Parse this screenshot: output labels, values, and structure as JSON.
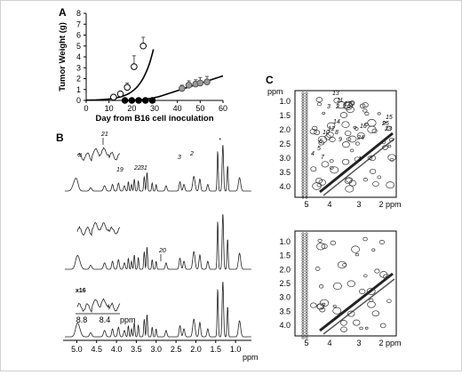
{
  "panels": {
    "a": {
      "label": "A"
    },
    "b": {
      "label": "B"
    },
    "c": {
      "label": "C"
    }
  },
  "chart_data": {
    "type": "scatter",
    "xlabel": "Day from B16 cell inoculation",
    "ylabel": "Tumor Weight (g)",
    "xlim": [
      0,
      60
    ],
    "ylim": [
      0,
      8
    ],
    "x_ticks": [
      "0",
      "10",
      "20",
      "30",
      "40",
      "50",
      "60"
    ],
    "y_ticks": [
      "0",
      "1",
      "2",
      "3",
      "4",
      "5",
      "6",
      "7",
      "8"
    ],
    "series": [
      {
        "style": "open circles with growth curve",
        "x": [
          12,
          15,
          18,
          21,
          25
        ],
        "y": [
          0.3,
          0.6,
          1.2,
          3.1,
          5.0
        ],
        "err": [
          0.1,
          0.2,
          0.4,
          1.0,
          0.8
        ]
      },
      {
        "style": "filled black circles",
        "x": [
          17,
          20,
          23,
          26,
          29
        ],
        "y": [
          0.0,
          0.0,
          0.0,
          0.0,
          0.0
        ]
      },
      {
        "style": "gray circles with growth curve",
        "x": [
          42,
          45,
          48,
          50,
          53
        ],
        "y": [
          1.1,
          1.4,
          1.5,
          1.6,
          1.7
        ],
        "err": [
          0.3,
          0.4,
          0.4,
          0.5,
          0.5
        ]
      }
    ]
  },
  "panel_b": {
    "spectra_ticks": [
      "5.0",
      "4.5",
      "4.0",
      "3.5",
      "3.0",
      "2.5",
      "2.0",
      "1.5",
      "1.0"
    ],
    "unit": "ppm",
    "top_labels": [
      "21",
      "19",
      "22",
      "31",
      "3",
      "2",
      "#",
      "*"
    ],
    "mid_labels": [
      "20"
    ],
    "scale_label": "x16",
    "inset_ticks": [
      "8.8",
      "8.4",
      "ppm"
    ]
  },
  "panel_c": {
    "top_axis_ticks": [
      "5",
      "4",
      "3",
      "2 ppm"
    ],
    "bottom_axis_ticks": [
      "5",
      "4",
      "3",
      "2 ppm"
    ],
    "y_ticks_top": [
      "ppm",
      "1.0",
      "1.5",
      "2.0",
      "2.5",
      "3.0",
      "3.5",
      "4.0"
    ],
    "y_ticks_bottom": [
      "1.0",
      "1.5",
      "2.0",
      "2.5",
      "3.0",
      "3.5",
      "4.0"
    ],
    "peak_labels": [
      "13",
      "11",
      "3",
      "2",
      "17",
      "16",
      "14",
      "12",
      "10",
      "8",
      "9",
      "6",
      "5",
      "4",
      "7",
      "24",
      "25",
      "23",
      "15",
      "1"
    ]
  }
}
